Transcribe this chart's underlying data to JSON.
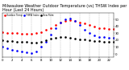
{
  "title": "Milwaukee Weather Outdoor Temperature (vs) THSW Index per Hour (Last 24 Hours)",
  "background_color": "#ffffff",
  "grid_color": "#aaaaaa",
  "hours": [
    0,
    1,
    2,
    3,
    4,
    5,
    6,
    7,
    8,
    9,
    10,
    11,
    12,
    13,
    14,
    15,
    16,
    17,
    18,
    19,
    20,
    21,
    22,
    23
  ],
  "temp": [
    32,
    31,
    30,
    30,
    29,
    29,
    29,
    30,
    32,
    35,
    38,
    42,
    46,
    48,
    49,
    48,
    46,
    44,
    42,
    40,
    38,
    37,
    36,
    36
  ],
  "thsw": [
    10,
    8,
    6,
    5,
    3,
    2,
    1,
    4,
    10,
    18,
    28,
    38,
    46,
    50,
    51,
    48,
    42,
    35,
    30,
    27,
    25,
    24,
    23,
    23
  ],
  "dew": [
    20,
    19,
    19,
    18,
    17,
    17,
    16,
    16,
    18,
    20,
    22,
    23,
    24,
    24,
    23,
    22,
    21,
    21,
    20,
    19,
    19,
    18,
    18,
    18
  ],
  "temp_color": "#ff0000",
  "thsw_color": "#0000ff",
  "dew_color": "#000000",
  "ylim": [
    -5,
    60
  ],
  "ytick_values": [
    0,
    10,
    20,
    30,
    40,
    50
  ],
  "ytick_labels": [
    "0",
    "10",
    "20",
    "30",
    "40",
    "50"
  ],
  "xlim": [
    0,
    23
  ],
  "xtick_step": 2,
  "title_fontsize": 3.5,
  "tick_fontsize": 2.8,
  "marker_size": 1.8,
  "line_width": 0.7
}
